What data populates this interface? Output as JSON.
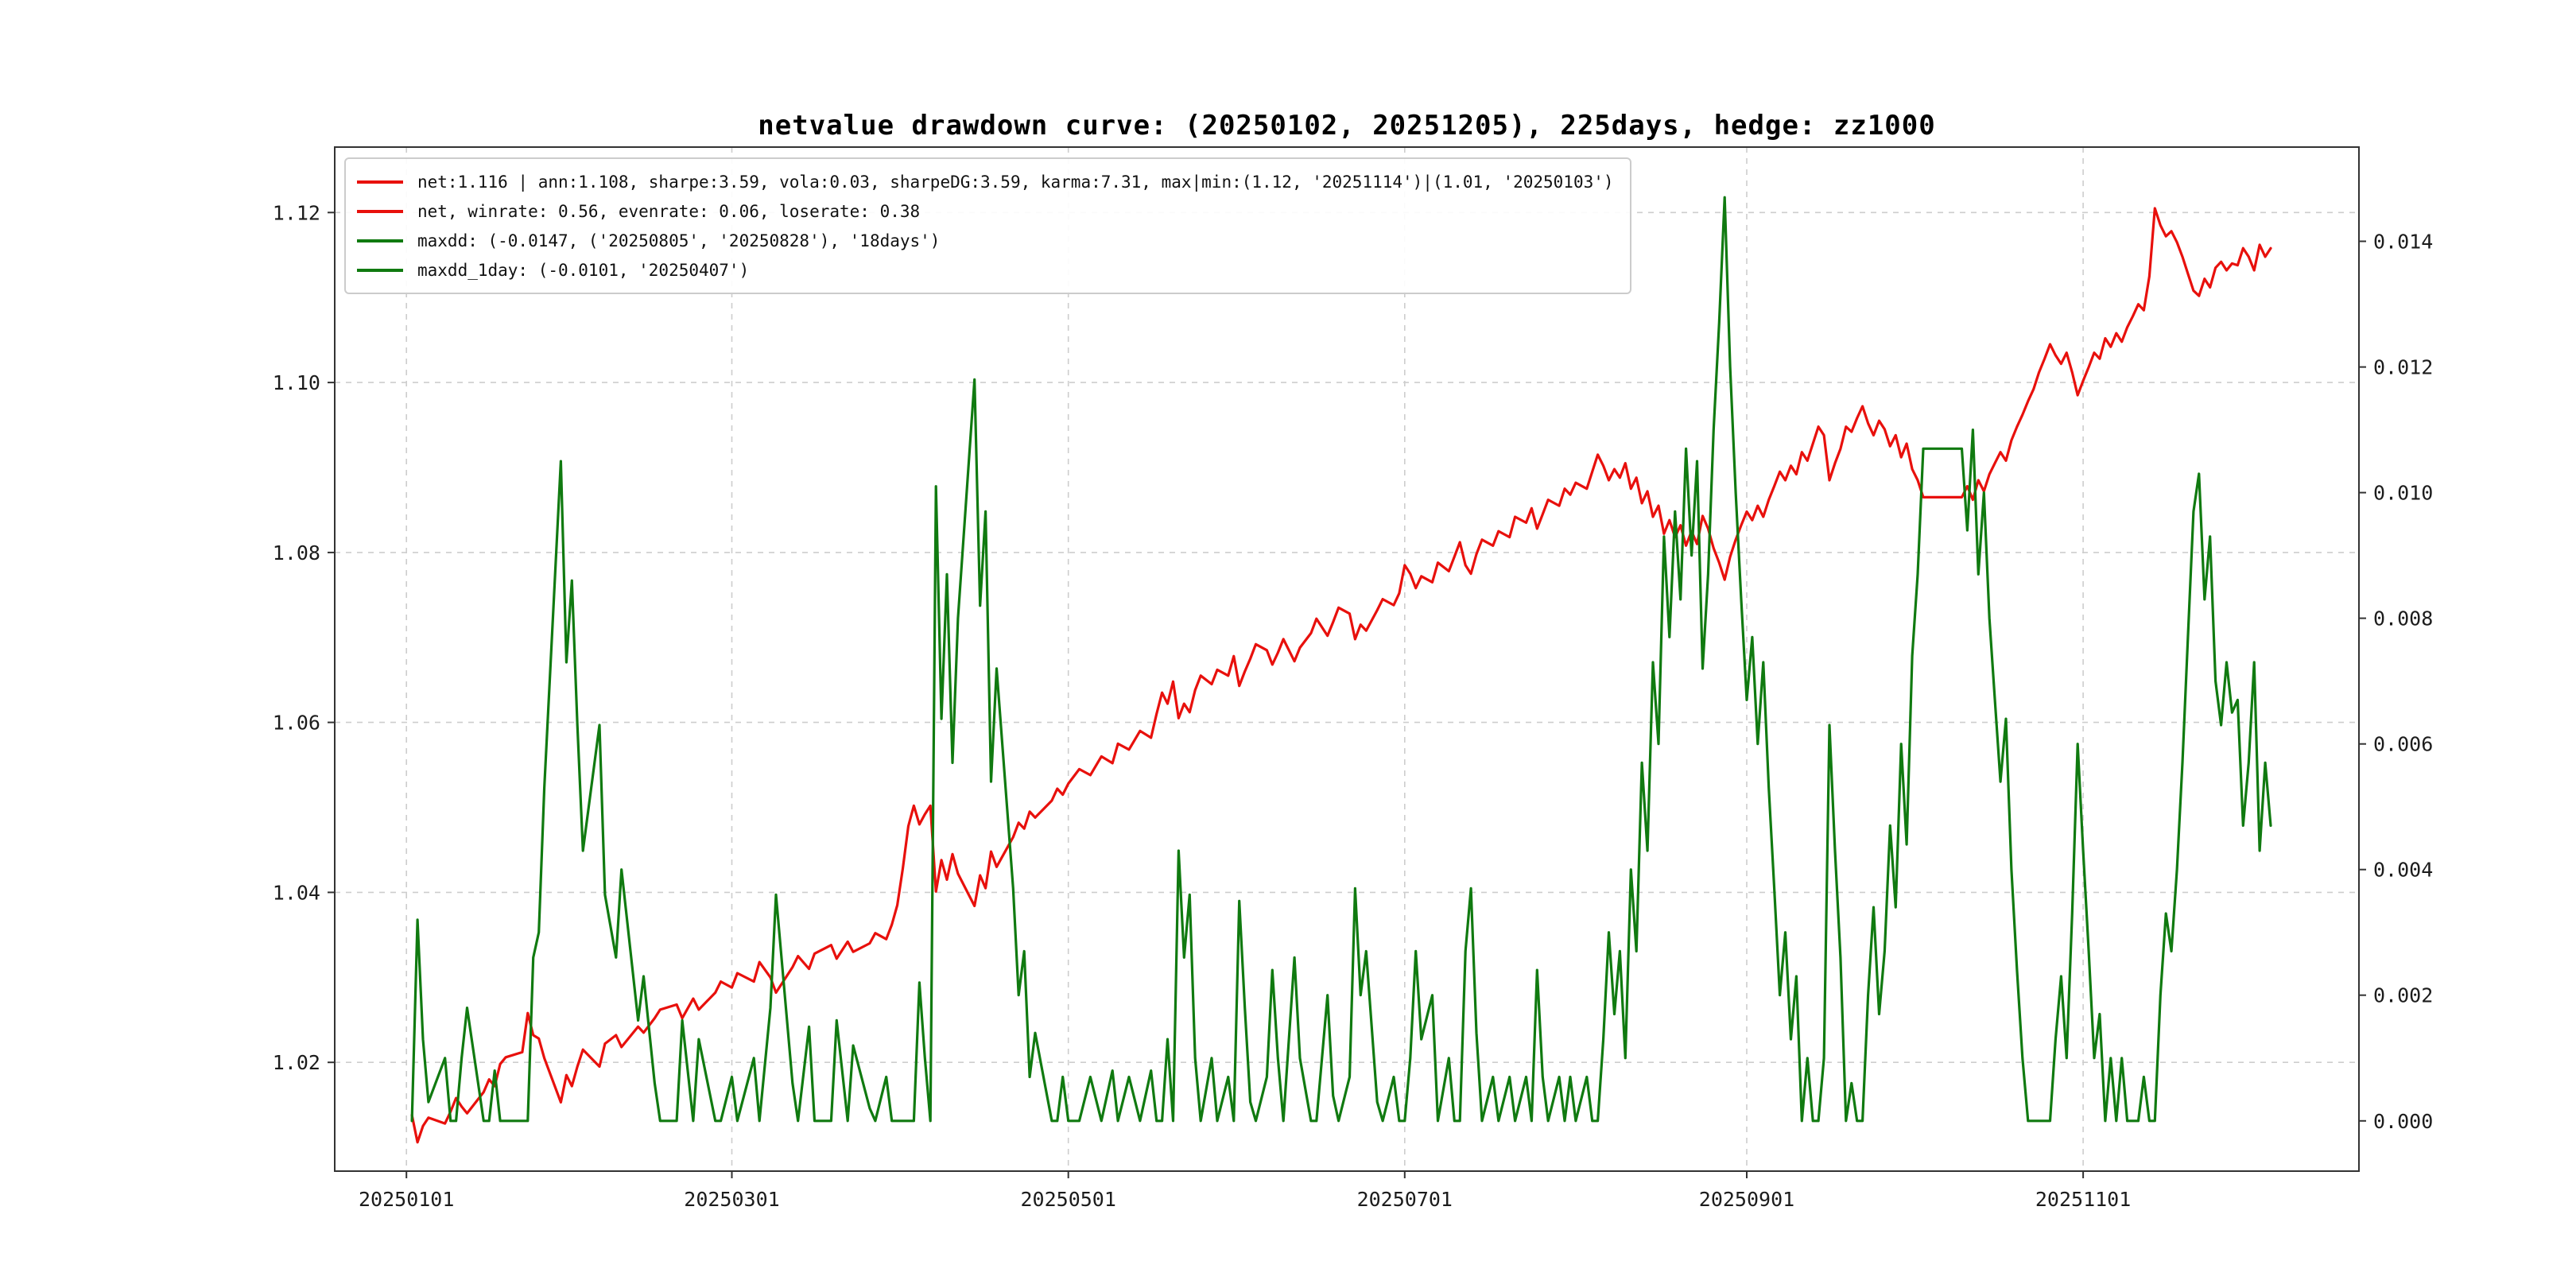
{
  "title": "netvalue drawdown curve: (20250102, 20251205), 225days, hedge: zz1000",
  "legend": {
    "items": [
      {
        "label": "net:1.116 | ann:1.108, sharpe:3.59, vola:0.03, sharpeDG:3.59, karma:7.31, max|min:(1.12, '20251114')|(1.01, '20250103')",
        "color": "#e8100c"
      },
      {
        "label": "net, winrate: 0.56, evenrate: 0.06, loserate: 0.38",
        "color": "#e8100c"
      },
      {
        "label": "maxdd: (-0.0147, ('20250805', '20250828'), '18days')",
        "color": "#107a10"
      },
      {
        "label": "maxdd_1day: (-0.0101, '20250407')",
        "color": "#107a10"
      }
    ]
  },
  "chart_data": {
    "type": "line",
    "title": "netvalue drawdown curve: (20250102, 20251205), 225days, hedge: zz1000",
    "annotations": {
      "net_final": 1.116,
      "ann": 1.108,
      "sharpe": 3.59,
      "vola": 0.03,
      "sharpeDG": 3.59,
      "karma": 7.31,
      "max": [
        1.12,
        "20251114"
      ],
      "min": [
        1.01,
        "20250103"
      ],
      "winrate": 0.56,
      "evenrate": 0.06,
      "loserate": 0.38,
      "maxdd": [
        -0.0147,
        "20250805",
        "20250828",
        "18days"
      ],
      "maxdd_1day": [
        -0.0101,
        "20250407"
      ],
      "period": [
        "20250102",
        "20251205"
      ],
      "days": 225,
      "hedge": "zz1000"
    },
    "x_axis": {
      "unit": "calendar days offset from 20250102",
      "xlim": [
        -14,
        353
      ],
      "tick_labels": [
        "20250101",
        "20250301",
        "20250501",
        "20250701",
        "20250901",
        "20251101"
      ],
      "tick_t": [
        -1,
        58,
        119,
        180,
        242,
        303
      ]
    },
    "left_axis": {
      "series": "net",
      "ylim": [
        1.0072,
        1.1277
      ],
      "ticks": [
        "1.02",
        "1.04",
        "1.06",
        "1.08",
        "1.10",
        "1.12"
      ]
    },
    "right_axis": {
      "series": "drawdown",
      "ylim": [
        -0.0008,
        0.0155
      ],
      "ticks": [
        "0.000",
        "0.002",
        "0.004",
        "0.006",
        "0.008",
        "0.010",
        "0.012",
        "0.014"
      ]
    },
    "grid": {
      "style": "dashed",
      "color": "#cdcdcd"
    },
    "series": [
      {
        "name": "net",
        "axis": "left",
        "color": "#e8100c",
        "t": [
          0,
          1,
          2,
          3,
          6,
          7,
          8,
          9,
          10,
          13,
          14,
          15,
          16,
          17,
          20,
          21,
          22,
          23,
          24,
          27,
          28,
          29,
          30,
          31,
          34,
          35,
          37,
          38,
          41,
          42,
          44,
          45,
          48,
          49,
          51,
          52,
          55,
          56,
          58,
          59,
          62,
          63,
          65,
          66,
          69,
          70,
          72,
          73,
          76,
          77,
          79,
          80,
          83,
          84,
          86,
          87,
          88,
          89,
          90,
          91,
          92,
          93,
          94,
          95,
          96,
          97,
          98,
          99,
          102,
          103,
          104,
          105,
          106,
          109,
          110,
          111,
          112,
          113,
          116,
          117,
          118,
          119,
          121,
          123,
          125,
          127,
          128,
          130,
          132,
          134,
          135,
          136,
          137,
          138,
          139,
          140,
          141,
          142,
          143,
          145,
          146,
          148,
          149,
          150,
          151,
          152,
          153,
          155,
          156,
          157,
          158,
          160,
          161,
          163,
          164,
          166,
          167,
          168,
          170,
          171,
          172,
          173,
          175,
          176,
          178,
          179,
          180,
          181,
          182,
          183,
          185,
          186,
          188,
          189,
          190,
          191,
          192,
          193,
          194,
          196,
          197,
          199,
          200,
          202,
          203,
          204,
          205,
          206,
          208,
          209,
          210,
          211,
          213,
          214,
          215,
          216,
          217,
          218,
          219,
          220,
          221,
          222,
          223,
          224,
          225,
          226,
          227,
          228,
          229,
          230,
          231,
          232,
          233,
          234,
          235,
          236,
          237,
          238,
          239,
          240,
          241,
          242,
          243,
          244,
          245,
          246,
          247,
          248,
          249,
          250,
          251,
          252,
          253,
          254,
          255,
          256,
          257,
          258,
          259,
          260,
          261,
          262,
          263,
          264,
          265,
          266,
          267,
          268,
          269,
          270,
          271,
          272,
          273,
          274,
          281,
          282,
          283,
          284,
          285,
          286,
          287,
          288,
          289,
          290,
          291,
          292,
          293,
          294,
          295,
          296,
          297,
          298,
          299,
          300,
          301,
          302,
          303,
          304,
          305,
          306,
          307,
          308,
          309,
          310,
          311,
          312,
          313,
          314,
          315,
          316,
          317,
          318,
          319,
          320,
          321,
          322,
          323,
          324,
          325,
          326,
          327,
          328,
          329,
          330,
          331,
          332,
          333,
          334,
          335,
          336,
          337
        ],
        "v": [
          1.0138,
          1.0106,
          1.0125,
          1.0135,
          1.0128,
          1.0142,
          1.0158,
          1.0148,
          1.014,
          1.0165,
          1.018,
          1.0172,
          1.0198,
          1.0206,
          1.0212,
          1.0258,
          1.0232,
          1.0228,
          1.0205,
          1.0153,
          1.0185,
          1.0172,
          1.0195,
          1.0215,
          1.0195,
          1.0222,
          1.0232,
          1.0218,
          1.0242,
          1.0235,
          1.0252,
          1.0262,
          1.0268,
          1.0252,
          1.0275,
          1.0262,
          1.0282,
          1.0295,
          1.0288,
          1.0305,
          1.0295,
          1.0318,
          1.03,
          1.0282,
          1.0312,
          1.0325,
          1.031,
          1.0328,
          1.0338,
          1.0322,
          1.0342,
          1.033,
          1.034,
          1.0352,
          1.0345,
          1.0362,
          1.0385,
          1.0428,
          1.0478,
          1.0502,
          1.048,
          1.0492,
          1.0502,
          1.0401,
          1.0438,
          1.0415,
          1.0445,
          1.0422,
          1.0384,
          1.042,
          1.0405,
          1.0448,
          1.043,
          1.0465,
          1.0482,
          1.0475,
          1.0495,
          1.0488,
          1.0508,
          1.0522,
          1.0515,
          1.0528,
          1.0545,
          1.0538,
          1.056,
          1.0552,
          1.0575,
          1.0568,
          1.059,
          1.0582,
          1.061,
          1.0635,
          1.0622,
          1.0648,
          1.0605,
          1.0622,
          1.0612,
          1.0638,
          1.0655,
          1.0645,
          1.0662,
          1.0655,
          1.0678,
          1.0643,
          1.066,
          1.0675,
          1.0692,
          1.0685,
          1.0668,
          1.0682,
          1.0698,
          1.0672,
          1.0688,
          1.0705,
          1.0722,
          1.0702,
          1.0718,
          1.0735,
          1.0728,
          1.0698,
          1.0715,
          1.0708,
          1.0732,
          1.0745,
          1.0738,
          1.0752,
          1.0785,
          1.0775,
          1.0758,
          1.0772,
          1.0765,
          1.0788,
          1.0778,
          1.0795,
          1.0812,
          1.0785,
          1.0775,
          1.0798,
          1.0815,
          1.0808,
          1.0825,
          1.0818,
          1.0842,
          1.0835,
          1.0852,
          1.0828,
          1.0845,
          1.0862,
          1.0855,
          1.0875,
          1.0868,
          1.0882,
          1.0875,
          1.0895,
          1.0915,
          1.0902,
          1.0885,
          1.0898,
          1.0888,
          1.0905,
          1.0875,
          1.0888,
          1.0858,
          1.0872,
          1.0842,
          1.0855,
          1.0822,
          1.0838,
          1.0818,
          1.0832,
          1.0808,
          1.0825,
          1.081,
          1.0843,
          1.0828,
          1.0805,
          1.0788,
          1.0768,
          1.0795,
          1.0815,
          1.0832,
          1.0848,
          1.0838,
          1.0855,
          1.0842,
          1.0862,
          1.0878,
          1.0895,
          1.0885,
          1.0902,
          1.0892,
          1.0918,
          1.0908,
          1.0928,
          1.0948,
          1.0938,
          1.0885,
          1.0905,
          1.0922,
          1.0948,
          1.0942,
          1.0958,
          1.0972,
          1.0952,
          1.0938,
          1.0955,
          1.0945,
          1.0925,
          1.0938,
          1.0912,
          1.0928,
          1.0898,
          1.0885,
          1.0865,
          1.0865,
          1.0878,
          1.0862,
          1.0885,
          1.0872,
          1.0892,
          1.0905,
          1.0918,
          1.0908,
          1.0932,
          1.0948,
          1.0962,
          1.0978,
          1.0992,
          1.1012,
          1.1028,
          1.1045,
          1.1032,
          1.1022,
          1.1035,
          1.1012,
          1.0985,
          1.1002,
          1.1018,
          1.1035,
          1.1028,
          1.1052,
          1.1042,
          1.1058,
          1.1048,
          1.1065,
          1.1078,
          1.1092,
          1.1085,
          1.1125,
          1.1205,
          1.1185,
          1.1172,
          1.1178,
          1.1165,
          1.1148,
          1.1128,
          1.1108,
          1.1102,
          1.1122,
          1.1112,
          1.1135,
          1.1142,
          1.1132,
          1.114,
          1.1138,
          1.1158,
          1.1148,
          1.1132,
          1.1162,
          1.1148,
          1.1158
        ]
      },
      {
        "name": "drawdown",
        "axis": "right",
        "color": "#107a10",
        "derived": "drawdown[i] = max(net[0..i]) - net[i]"
      }
    ]
  }
}
